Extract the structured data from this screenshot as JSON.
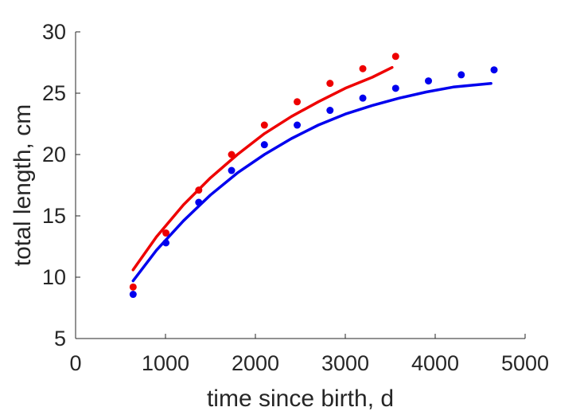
{
  "chart_data": {
    "type": "scatter",
    "title": "",
    "xlabel": "time since birth, d",
    "ylabel": "total length, cm",
    "xlim": [
      0,
      5000
    ],
    "ylim": [
      5,
      30
    ],
    "xticks": [
      0,
      1000,
      2000,
      3000,
      4000,
      5000
    ],
    "yticks": [
      5,
      10,
      15,
      20,
      25,
      30
    ],
    "grid": false,
    "legend": "none",
    "series": [
      {
        "color": "#ee0000",
        "points": [
          [
            640,
            9.2
          ],
          [
            1005,
            13.6
          ],
          [
            1370,
            17.1
          ],
          [
            1735,
            20.0
          ],
          [
            2100,
            22.4
          ],
          [
            2465,
            24.3
          ],
          [
            2830,
            25.8
          ],
          [
            3195,
            27.0
          ],
          [
            3560,
            28.0
          ]
        ],
        "fit": [
          [
            640,
            10.6
          ],
          [
            900,
            13.3
          ],
          [
            1200,
            15.9
          ],
          [
            1500,
            18.1
          ],
          [
            1800,
            20.0
          ],
          [
            2100,
            21.7
          ],
          [
            2400,
            23.1
          ],
          [
            2700,
            24.3
          ],
          [
            3000,
            25.4
          ],
          [
            3300,
            26.3
          ],
          [
            3520,
            27.1
          ]
        ]
      },
      {
        "color": "#0000ee",
        "points": [
          [
            640,
            8.6
          ],
          [
            1005,
            12.8
          ],
          [
            1370,
            16.1
          ],
          [
            1735,
            18.7
          ],
          [
            2100,
            20.8
          ],
          [
            2465,
            22.4
          ],
          [
            2830,
            23.6
          ],
          [
            3195,
            24.6
          ],
          [
            3560,
            25.4
          ],
          [
            3925,
            26.0
          ],
          [
            4290,
            26.5
          ],
          [
            4655,
            26.9
          ]
        ],
        "fit": [
          [
            640,
            9.7
          ],
          [
            900,
            12.2
          ],
          [
            1200,
            14.6
          ],
          [
            1500,
            16.7
          ],
          [
            1800,
            18.5
          ],
          [
            2100,
            20.0
          ],
          [
            2400,
            21.3
          ],
          [
            2700,
            22.4
          ],
          [
            3000,
            23.3
          ],
          [
            3300,
            24.0
          ],
          [
            3600,
            24.6
          ],
          [
            3900,
            25.1
          ],
          [
            4200,
            25.5
          ],
          [
            4620,
            25.8
          ]
        ]
      }
    ]
  }
}
